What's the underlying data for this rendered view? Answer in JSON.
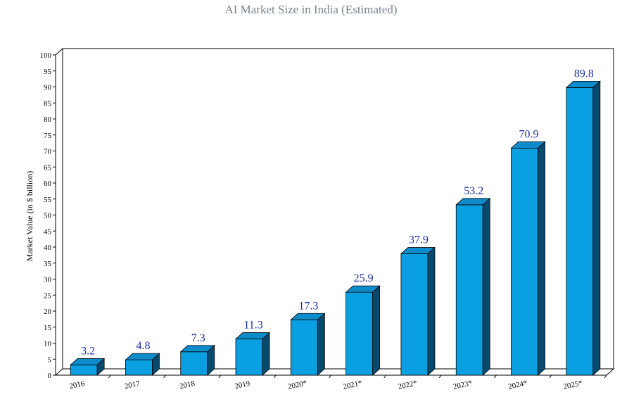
{
  "chart_data": {
    "type": "bar",
    "title": "AI Market Size in India (Estimated)",
    "xlabel": "",
    "ylabel": "Market Value (in $ billion)",
    "categories": [
      "2016",
      "2017",
      "2018",
      "2019",
      "2020*",
      "2021*",
      "2022*",
      "2023*",
      "2024*",
      "2025*"
    ],
    "values": [
      3.2,
      4.8,
      7.3,
      11.3,
      17.3,
      25.9,
      37.9,
      53.2,
      70.9,
      89.8
    ],
    "data_labels": [
      "3.2",
      "4.8",
      "7.3",
      "11.3",
      "17.3",
      "25.9",
      "37.9",
      "53.2",
      "70.9",
      "89.8"
    ],
    "ylim": [
      0,
      100
    ],
    "yticks": [
      0,
      5,
      10,
      15,
      20,
      25,
      30,
      35,
      40,
      45,
      50,
      55,
      60,
      65,
      70,
      75,
      80,
      85,
      90,
      95,
      100
    ],
    "grid": false,
    "legend": "none",
    "style": "3d",
    "colors": {
      "bar_front": "#0a9fe0",
      "bar_top": "#0d8ccc",
      "bar_side": "#064a6e",
      "data_label": "#1a2fa8",
      "title": "#7a8290"
    }
  }
}
